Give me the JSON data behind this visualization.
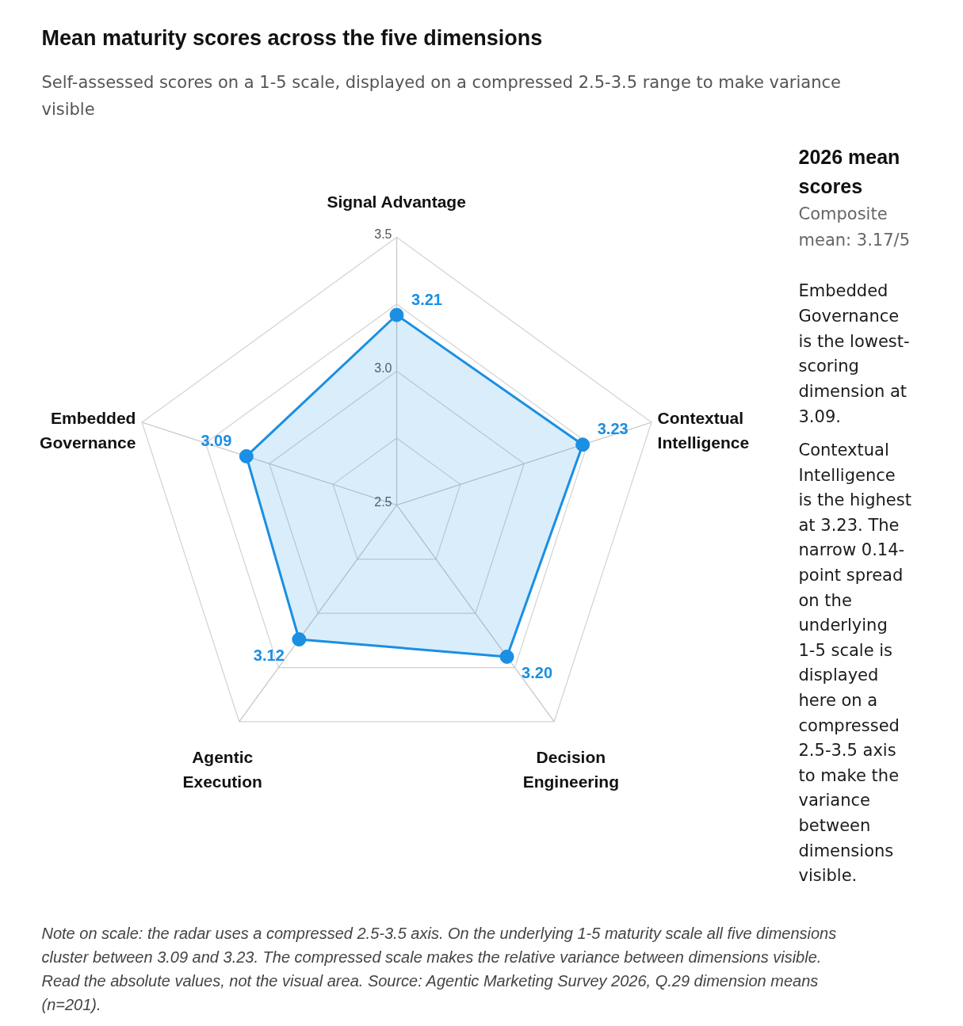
{
  "chart_data": {
    "type": "radar",
    "title": "Mean maturity scores across the five dimensions",
    "subtitle": "Self-assessed scores on a 1-5 scale, displayed on a compressed 2.5-3.5 range to make variance visible",
    "categories": [
      "Signal Advantage",
      "Contextual Intelligence",
      "Decision Engineering",
      "Agentic Execution",
      "Embedded Governance"
    ],
    "series": [
      {
        "color": "#1a8fe3",
        "values": [
          3.21,
          3.23,
          3.2,
          3.12,
          3.09
        ],
        "value_labels": [
          "3.21",
          "3.23",
          "3.20",
          "3.12",
          "3.09"
        ]
      }
    ],
    "ylim": [
      2.5,
      3.5
    ],
    "yticks": [
      2.5,
      {
        "value": 3,
        "label": "3.0"
      },
      3.5
    ],
    "grid": true,
    "marker": "circle",
    "line_style": "solid",
    "annotations": [
      "2026 mean scores",
      "Composite mean: 3.17/5",
      "Embedded Governance is the lowest-scoring dimension at 3.09.",
      "Contextual Intelligence is the highest at 3.23. The narrow 0.14-point spread on the underlying 1-5 scale is displayed here on a compressed 2.5-3.5 axis to make the variance between dimensions visible.",
      "Note on scale: the radar uses a compressed 2.5-3.5 axis. On the underlying 1-5 maturity scale all five dimensions cluster between 3.09 and 3.23. The compressed scale makes the relative variance between dimensions visible. Read the absolute values, not the visual area. Source: Agentic Marketing Survey 2026, Q.29 dimension means (n=201)."
    ]
  }
}
